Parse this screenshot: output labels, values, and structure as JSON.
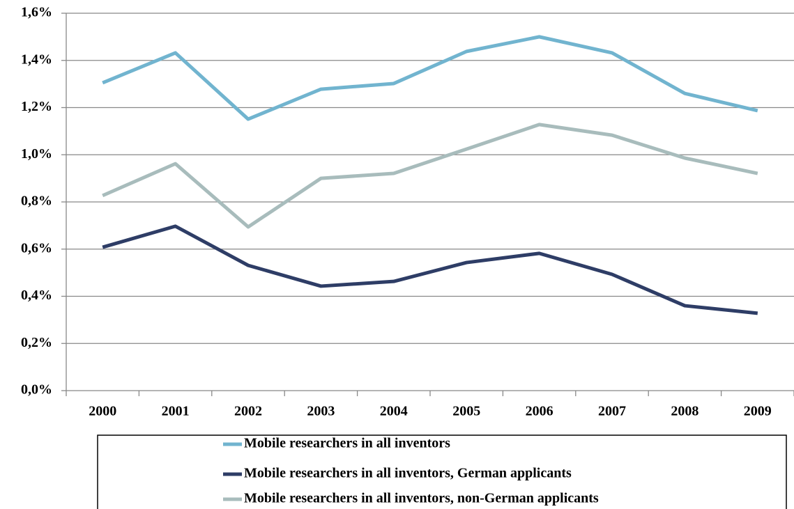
{
  "chart_data": {
    "type": "line",
    "categories": [
      "2000",
      "2001",
      "2002",
      "2003",
      "2004",
      "2005",
      "2006",
      "2007",
      "2008",
      "2009"
    ],
    "series": [
      {
        "name": "Mobile researchers in all inventors",
        "color": "#71b4cf",
        "values": [
          1.305,
          1.432,
          1.151,
          1.278,
          1.302,
          1.438,
          1.5,
          1.432,
          1.26,
          1.187
        ]
      },
      {
        "name": "Mobile researchers in all inventors, German applicants",
        "color": "#2e3d66",
        "values": [
          0.608,
          0.697,
          0.531,
          0.443,
          0.463,
          0.543,
          0.582,
          0.493,
          0.36,
          0.328
        ]
      },
      {
        "name": "Mobile researchers in all inventors, non-German applicants",
        "color": "#a8bcbc",
        "values": [
          0.827,
          0.962,
          0.694,
          0.9,
          0.921,
          1.024,
          1.128,
          1.083,
          0.986,
          0.921
        ]
      }
    ],
    "ylim": [
      0,
      1.6
    ],
    "yticks": [
      {
        "value": 0,
        "label": "0,0%"
      },
      {
        "value": 0.2,
        "label": "0,2%"
      },
      {
        "value": 0.4,
        "label": "0,4%"
      },
      {
        "value": 0.6,
        "label": "0,6%"
      },
      {
        "value": 0.8,
        "label": "0,8%"
      },
      {
        "value": 1.0,
        "label": "1,0%"
      },
      {
        "value": 1.2,
        "label": "1,2%"
      },
      {
        "value": 1.4,
        "label": "1,4%"
      },
      {
        "value": 1.6,
        "label": "1,6%"
      }
    ],
    "grid": true
  }
}
